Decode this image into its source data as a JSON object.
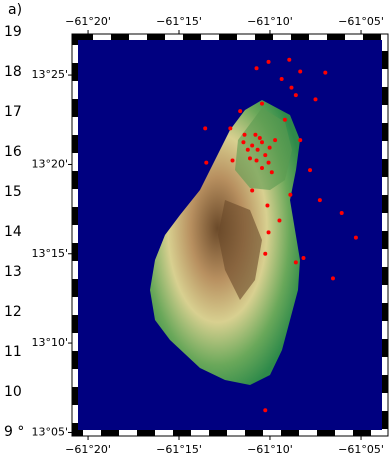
{
  "panel_label": "a)",
  "line_numbers": [
    "19",
    "18",
    "17",
    "16",
    "15",
    "14",
    "13",
    "12",
    "11",
    "10",
    "9 °"
  ],
  "chart_data": {
    "type": "scatter",
    "color": "#ff0000",
    "xlim": [
      -61.348,
      -61.0586
    ],
    "ylim": [
      13.08,
      13.455
    ],
    "xticks": [
      {
        "value": -61.3333,
        "label": "−61°20'"
      },
      {
        "value": -61.25,
        "label": "−61°15'"
      },
      {
        "value": -61.1667,
        "label": "−61°10'"
      },
      {
        "value": -61.0833,
        "label": "−61°05'"
      }
    ],
    "yticks": [
      {
        "value": 13.4167,
        "label": "13°25'"
      },
      {
        "value": 13.3333,
        "label": "13°20'"
      },
      {
        "value": 13.25,
        "label": "13°15'"
      },
      {
        "value": 13.1667,
        "label": "13°10'"
      },
      {
        "value": 13.0833,
        "label": "13°05'"
      }
    ],
    "x": [
      -61.179,
      -61.168,
      -61.149,
      -61.139,
      -61.116,
      -61.156,
      -61.147,
      -61.143,
      -61.125,
      -61.194,
      -61.174,
      -61.226,
      -61.121,
      -61.101,
      -61.088,
      -61.143,
      -61.136,
      -61.109,
      -61.171,
      -61.168,
      -61.171,
      -61.225,
      -61.201,
      -61.148,
      -61.158,
      -61.169,
      -61.183,
      -61.19,
      -61.139,
      -61.13,
      -61.203,
      -61.153,
      -61.178,
      -61.183,
      -61.174,
      -61.171,
      -61.185,
      -61.167,
      -61.179,
      -61.176,
      -61.187,
      -61.168,
      -61.18,
      -61.162,
      -61.191,
      -61.174,
      -61.165
    ],
    "values": [
      13.423,
      13.429,
      13.431,
      13.42,
      13.419,
      13.413,
      13.405,
      13.398,
      13.394,
      13.383,
      13.39,
      13.367,
      13.3,
      13.288,
      13.265,
      13.242,
      13.246,
      13.227,
      13.25,
      13.27,
      13.104,
      13.335,
      13.337,
      13.305,
      13.281,
      13.295,
      13.309,
      13.361,
      13.356,
      13.328,
      13.367,
      13.375,
      13.347,
      13.351,
      13.354,
      13.342,
      13.339,
      13.349,
      13.337,
      13.358,
      13.347,
      13.335,
      13.361,
      13.356,
      13.354,
      13.33,
      13.326
    ]
  }
}
